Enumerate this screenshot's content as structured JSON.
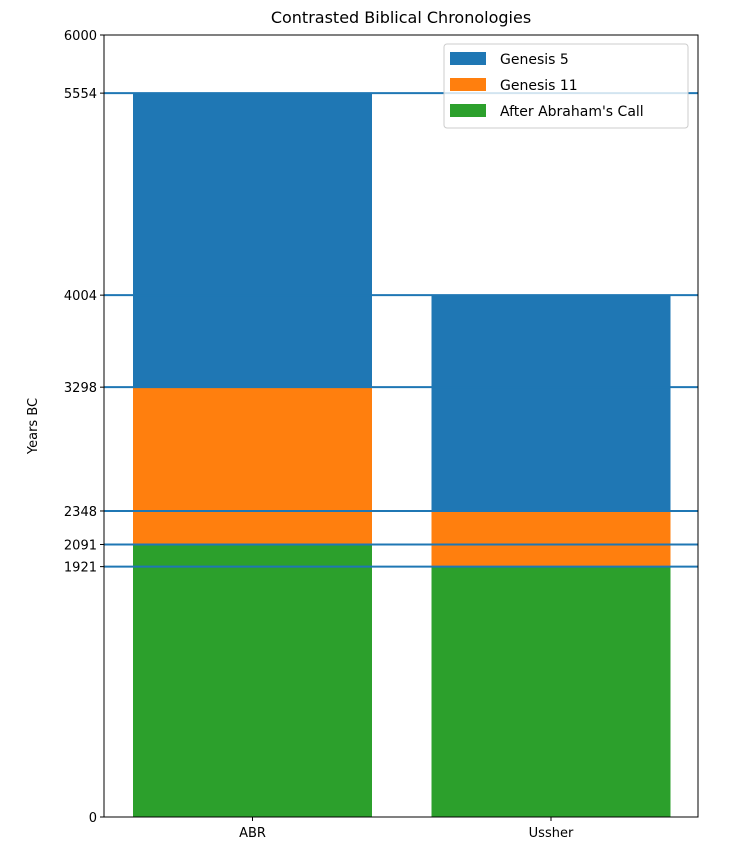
{
  "chart_data": {
    "type": "bar",
    "stacked": true,
    "title": "Contrasted Biblical Chronologies",
    "xlabel": "",
    "ylabel": "Years BC",
    "ylim": [
      0,
      6000
    ],
    "categories": [
      "ABR",
      "Ussher"
    ],
    "series": [
      {
        "name": "After Abraham's Call",
        "color": "#2ca02c",
        "bottoms": [
          0,
          0
        ],
        "tops": [
          2091,
          1921
        ]
      },
      {
        "name": "Genesis 11",
        "color": "#ff7f0e",
        "bottoms": [
          2091,
          1921
        ],
        "tops": [
          3298,
          2348
        ]
      },
      {
        "name": "Genesis 5",
        "color": "#1f77b4",
        "bottoms": [
          3298,
          2348
        ],
        "tops": [
          5554,
          4004
        ]
      }
    ],
    "yticks": [
      0,
      1921,
      2091,
      2348,
      3298,
      4004,
      5554,
      6000
    ],
    "hlines": [
      5554,
      4004,
      3298,
      2348,
      2091,
      1921
    ],
    "hline_color": "#1f77b4",
    "legend": {
      "placement": "top-right",
      "entries": [
        "Genesis 5",
        "Genesis 11",
        "After Abraham's Call"
      ]
    }
  }
}
